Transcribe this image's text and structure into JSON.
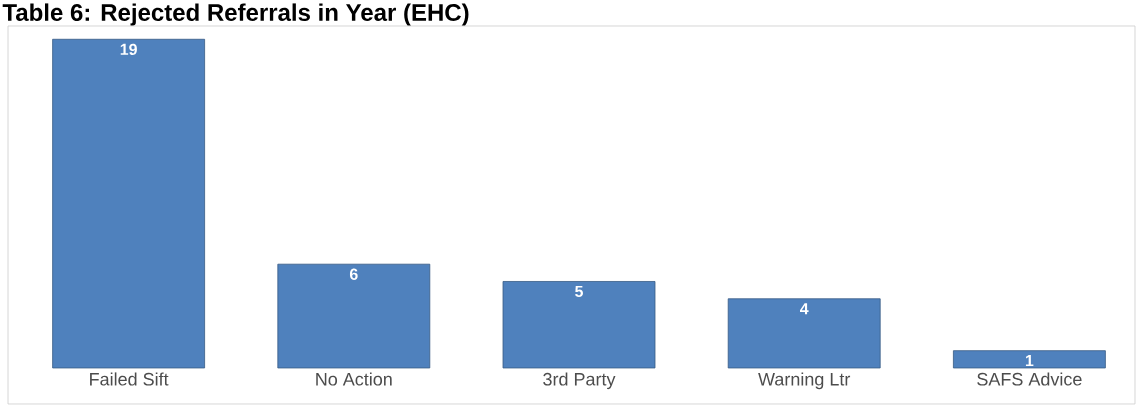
{
  "chart_data": {
    "type": "bar",
    "title": "Table 6: Rejected Referrals in Year (EHC)",
    "categories": [
      "Failed Sift",
      "No Action",
      "3rd Party",
      "Warning Ltr",
      "SAFS Advice"
    ],
    "values": [
      19,
      6,
      5,
      4,
      1
    ],
    "color": "#4f81bd",
    "data_labels": true
  }
}
